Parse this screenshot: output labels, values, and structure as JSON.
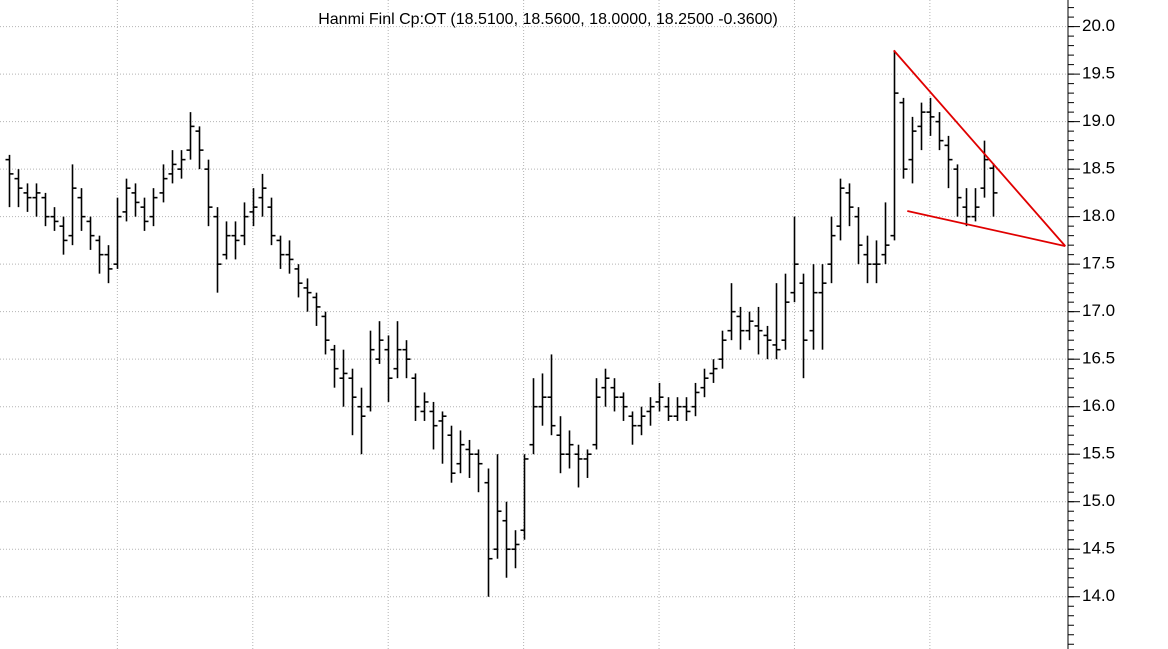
{
  "chart_data": {
    "type": "ohlc",
    "title": "Hanmi Finl Cp:OT (18.5100, 18.5600, 18.0000, 18.2500 -0.3600)",
    "color": "#000000",
    "grid": true,
    "xlim": [
      -1,
      117.3
    ],
    "xticks": [
      12,
      27,
      42,
      57,
      72,
      87,
      102
    ],
    "ylim": [
      13.45,
      20.28
    ],
    "yticks": [
      {
        "value": 14,
        "label": "14.0"
      },
      14.5,
      {
        "value": 15,
        "label": "15.0"
      },
      15.5,
      {
        "value": 16,
        "label": "16.0"
      },
      16.5,
      {
        "value": 17,
        "label": "17.0"
      },
      17.5,
      {
        "value": 18,
        "label": "18.0"
      },
      18.5,
      {
        "value": 19,
        "label": "19.0"
      },
      19.5,
      {
        "value": 20,
        "label": "20.0"
      }
    ],
    "ohlc": [
      [
        18.6,
        18.65,
        18.1,
        18.45
      ],
      [
        18.4,
        18.5,
        18.1,
        18.3
      ],
      [
        18.25,
        18.35,
        18.05,
        18.2
      ],
      [
        18.2,
        18.35,
        18.0,
        18.25
      ],
      [
        18.2,
        18.25,
        17.9,
        18.0
      ],
      [
        18.0,
        18.1,
        17.85,
        17.95
      ],
      [
        17.9,
        18.0,
        17.6,
        17.75
      ],
      [
        17.8,
        18.55,
        17.7,
        18.3
      ],
      [
        18.2,
        18.3,
        17.85,
        18.0
      ],
      [
        17.95,
        18.0,
        17.65,
        17.8
      ],
      [
        17.75,
        17.8,
        17.4,
        17.6
      ],
      [
        17.6,
        17.7,
        17.3,
        17.45
      ],
      [
        17.5,
        18.2,
        17.45,
        18.0
      ],
      [
        18.05,
        18.4,
        17.95,
        18.3
      ],
      [
        18.25,
        18.35,
        18.0,
        18.15
      ],
      [
        18.1,
        18.2,
        17.85,
        17.95
      ],
      [
        18.0,
        18.3,
        17.9,
        18.2
      ],
      [
        18.25,
        18.55,
        18.15,
        18.4
      ],
      [
        18.45,
        18.7,
        18.35,
        18.55
      ],
      [
        18.5,
        18.7,
        18.4,
        18.6
      ],
      [
        18.7,
        19.1,
        18.6,
        18.95
      ],
      [
        18.9,
        18.95,
        18.5,
        18.7
      ],
      [
        18.5,
        18.6,
        17.9,
        18.1
      ],
      [
        18.0,
        18.1,
        17.2,
        17.5
      ],
      [
        17.6,
        17.95,
        17.55,
        17.8
      ],
      [
        17.8,
        17.95,
        17.55,
        17.75
      ],
      [
        17.8,
        18.15,
        17.7,
        18.0
      ],
      [
        18.05,
        18.3,
        17.9,
        18.1
      ],
      [
        18.2,
        18.45,
        18.0,
        18.3
      ],
      [
        18.1,
        18.2,
        17.7,
        17.8
      ],
      [
        17.75,
        17.8,
        17.45,
        17.6
      ],
      [
        17.6,
        17.75,
        17.4,
        17.55
      ],
      [
        17.45,
        17.5,
        17.15,
        17.3
      ],
      [
        17.25,
        17.35,
        17.0,
        17.2
      ],
      [
        17.15,
        17.2,
        16.85,
        17.05
      ],
      [
        16.95,
        17.0,
        16.55,
        16.7
      ],
      [
        16.6,
        16.65,
        16.2,
        16.4
      ],
      [
        16.3,
        16.6,
        16.0,
        16.35
      ],
      [
        16.3,
        16.4,
        15.7,
        16.1
      ],
      [
        16.0,
        16.2,
        15.5,
        15.9
      ],
      [
        16.0,
        16.8,
        15.95,
        16.6
      ],
      [
        16.5,
        16.9,
        16.45,
        16.7
      ],
      [
        16.6,
        16.75,
        16.05,
        16.3
      ],
      [
        16.4,
        16.9,
        16.3,
        16.6
      ],
      [
        16.6,
        16.7,
        16.3,
        16.5
      ],
      [
        16.3,
        16.35,
        15.85,
        16.0
      ],
      [
        15.95,
        16.15,
        15.85,
        16.05
      ],
      [
        15.95,
        16.05,
        15.55,
        15.8
      ],
      [
        15.85,
        15.95,
        15.4,
        15.9
      ],
      [
        15.7,
        15.8,
        15.2,
        15.3
      ],
      [
        15.4,
        15.75,
        15.3,
        15.6
      ],
      [
        15.55,
        15.65,
        15.25,
        15.5
      ],
      [
        15.5,
        15.55,
        15.1,
        15.4
      ],
      [
        15.2,
        15.35,
        14.0,
        14.4
      ],
      [
        14.5,
        15.5,
        14.4,
        14.9
      ],
      [
        14.8,
        15.0,
        14.2,
        14.5
      ],
      [
        14.5,
        14.7,
        14.3,
        14.55
      ],
      [
        14.7,
        15.5,
        14.6,
        15.45
      ],
      [
        15.6,
        16.3,
        15.5,
        16.0
      ],
      [
        16.0,
        16.35,
        15.8,
        16.1
      ],
      [
        16.1,
        16.55,
        15.7,
        15.8
      ],
      [
        15.7,
        15.9,
        15.3,
        15.5
      ],
      [
        15.5,
        15.75,
        15.35,
        15.6
      ],
      [
        15.5,
        15.6,
        15.15,
        15.45
      ],
      [
        15.45,
        15.55,
        15.25,
        15.5
      ],
      [
        15.6,
        16.3,
        15.55,
        16.1
      ],
      [
        16.2,
        16.4,
        16.0,
        16.3
      ],
      [
        16.2,
        16.3,
        15.95,
        16.1
      ],
      [
        16.1,
        16.15,
        15.85,
        16.0
      ],
      [
        15.9,
        15.95,
        15.6,
        15.8
      ],
      [
        15.8,
        16.0,
        15.7,
        15.9
      ],
      [
        15.95,
        16.1,
        15.8,
        16.0
      ],
      [
        16.05,
        16.25,
        15.95,
        16.1
      ],
      [
        16.0,
        16.1,
        15.85,
        15.9
      ],
      [
        15.9,
        16.1,
        15.85,
        16.0
      ],
      [
        16.0,
        16.1,
        15.85,
        15.95
      ],
      [
        16.0,
        16.25,
        15.9,
        16.15
      ],
      [
        16.2,
        16.4,
        16.1,
        16.3
      ],
      [
        16.35,
        16.5,
        16.25,
        16.4
      ],
      [
        16.5,
        16.8,
        16.4,
        16.7
      ],
      [
        16.8,
        17.3,
        16.7,
        17.0
      ],
      [
        16.95,
        17.05,
        16.6,
        16.8
      ],
      [
        16.8,
        17.0,
        16.7,
        16.9
      ],
      [
        16.85,
        17.05,
        16.55,
        16.8
      ],
      [
        16.75,
        16.85,
        16.5,
        16.7
      ],
      [
        16.65,
        17.3,
        16.5,
        16.6
      ],
      [
        16.7,
        17.4,
        16.6,
        17.1
      ],
      [
        17.2,
        18.0,
        17.1,
        17.5
      ],
      [
        17.3,
        17.4,
        16.3,
        16.7
      ],
      [
        16.8,
        17.5,
        16.6,
        17.2
      ],
      [
        17.2,
        17.5,
        16.6,
        17.3
      ],
      [
        17.5,
        18.0,
        17.3,
        17.8
      ],
      [
        17.9,
        18.4,
        17.75,
        18.3
      ],
      [
        18.25,
        18.35,
        17.9,
        18.1
      ],
      [
        18.0,
        18.1,
        17.5,
        17.7
      ],
      [
        17.6,
        17.8,
        17.3,
        17.5
      ],
      [
        17.5,
        17.75,
        17.3,
        17.5
      ],
      [
        17.6,
        18.15,
        17.5,
        17.7
      ],
      [
        17.8,
        19.75,
        17.75,
        19.3
      ],
      [
        19.2,
        19.25,
        18.4,
        18.5
      ],
      [
        18.6,
        19.05,
        18.35,
        18.9
      ],
      [
        18.95,
        19.2,
        18.7,
        19.1
      ],
      [
        19.1,
        19.25,
        18.85,
        19.05
      ],
      [
        19.0,
        19.1,
        18.7,
        18.8
      ],
      [
        18.75,
        18.85,
        18.3,
        18.6
      ],
      [
        18.5,
        18.55,
        18.0,
        18.2
      ],
      [
        18.1,
        18.3,
        17.9,
        18.0
      ],
      [
        18.0,
        18.3,
        17.95,
        18.1
      ],
      [
        18.3,
        18.8,
        18.2,
        18.6
      ],
      [
        18.51,
        18.56,
        18.0,
        18.25
      ]
    ],
    "trendlines": [
      {
        "color": "#e00000",
        "from": [
          98,
          19.75
        ],
        "to": [
          117,
          17.69
        ]
      },
      {
        "color": "#e00000",
        "from": [
          99.5,
          18.06
        ],
        "to": [
          117,
          17.69
        ]
      }
    ]
  }
}
